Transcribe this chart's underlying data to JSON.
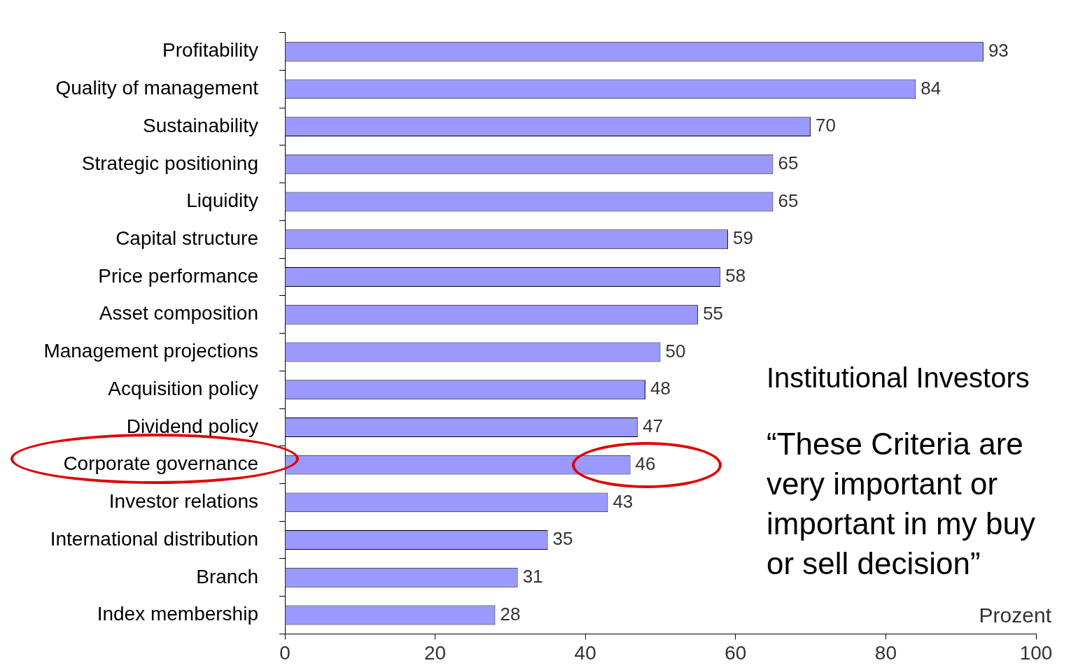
{
  "chart_data": {
    "type": "bar",
    "orientation": "horizontal",
    "xlabel": "Prozent",
    "categories": [
      "Profitability",
      "Quality of management",
      "Sustainability",
      "Strategic positioning",
      "Liquidity",
      "Capital structure",
      "Price performance",
      "Asset composition",
      "Management projections",
      "Acquisition policy",
      "Dividend policy",
      "Corporate governance",
      "Investor relations",
      "International distribution",
      "Branch",
      "Index membership"
    ],
    "values": [
      93,
      84,
      70,
      65,
      65,
      59,
      58,
      55,
      50,
      48,
      47,
      46,
      43,
      35,
      31,
      28
    ],
    "color": "#9999ff",
    "xlim": [
      0,
      100
    ],
    "xticks": [
      0,
      20,
      40,
      60,
      80,
      100
    ],
    "grid": false,
    "legend": false,
    "data_labels": true,
    "annotations": [
      "Institutional Investors",
      "“These Criteria are very important or important in my buy or sell decision”"
    ]
  }
}
